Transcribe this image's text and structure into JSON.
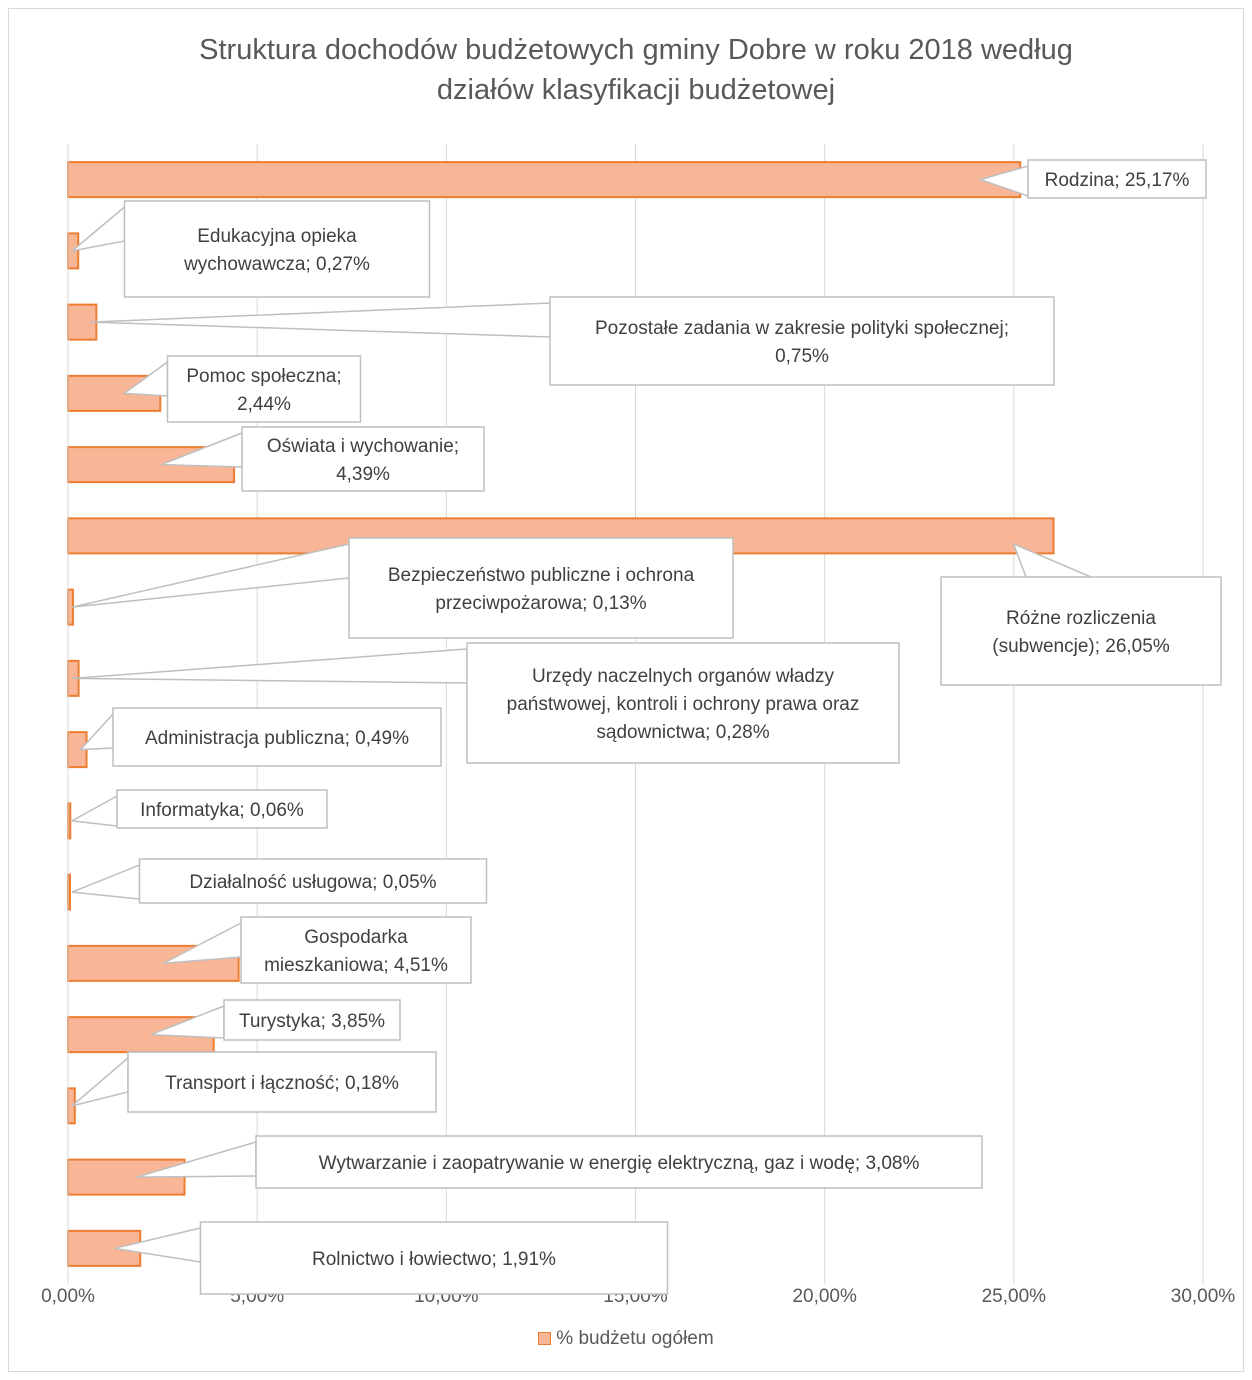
{
  "chart_data": {
    "type": "bar",
    "orientation": "horizontal",
    "title": "Struktura dochodów budżetowych gminy Dobre w roku 2018 według\ndziałów klasyfikacji budżetowej",
    "xlim": [
      0,
      30
    ],
    "x_ticks": [
      "0,00%",
      "5,00%",
      "10,00%",
      "15,00%",
      "20,00%",
      "25,00%",
      "30,00%"
    ],
    "grid": true,
    "legend_position": "bottom",
    "series": [
      {
        "name": "% budżetu ogółem",
        "color": "#f8b696",
        "border_color": "#ed7d31",
        "points": [
          {
            "category": "Rodzina",
            "value": 25.17,
            "label": "Rodzina; 25,17%"
          },
          {
            "category": "Edukacyjna opieka wychowawcza",
            "value": 0.27,
            "label": "Edukacyjna opieka\nwychowawcza; 0,27%"
          },
          {
            "category": "Pozostałe zadania w zakresie polityki społecznej",
            "value": 0.75,
            "label": "Pozostałe zadania w zakresie polityki społecznej;\n0,75%"
          },
          {
            "category": "Pomoc społeczna",
            "value": 2.44,
            "label": "Pomoc społeczna;\n2,44%"
          },
          {
            "category": "Oświata i wychowanie",
            "value": 4.39,
            "label": "Oświata i wychowanie;\n4,39%"
          },
          {
            "category": "Różne rozliczenia (subwencje)",
            "value": 26.05,
            "label": "Różne rozliczenia\n(subwencje); 26,05%"
          },
          {
            "category": "Bezpieczeństwo publiczne i ochrona przeciwpożarowa",
            "value": 0.13,
            "label": "Bezpieczeństwo publiczne i ochrona\nprzeciwpożarowa; 0,13%"
          },
          {
            "category": "Urzędy naczelnych organów władzy państwowej, kontroli i ochrony prawa oraz sądownictwa",
            "value": 0.28,
            "label": "Urzędy naczelnych organów władzy\npaństwowej, kontroli i ochrony prawa oraz\nsądownictwa; 0,28%"
          },
          {
            "category": "Administracja publiczna",
            "value": 0.49,
            "label": "Administracja publiczna; 0,49%"
          },
          {
            "category": "Informatyka",
            "value": 0.06,
            "label": "Informatyka; 0,06%"
          },
          {
            "category": "Działalność usługowa",
            "value": 0.05,
            "label": "Działalność usługowa; 0,05%"
          },
          {
            "category": "Gospodarka mieszkaniowa",
            "value": 4.51,
            "label": "Gospodarka\nmieszkaniowa; 4,51%"
          },
          {
            "category": "Turystyka",
            "value": 3.85,
            "label": "Turystyka; 3,85%"
          },
          {
            "category": "Transport i łączność",
            "value": 0.18,
            "label": "Transport i łączność; 0,18%"
          },
          {
            "category": "Wytwarzanie i zaopatrywanie w energię elektryczną, gaz i wodę",
            "value": 3.08,
            "label": "Wytwarzanie i zaopatrywanie w energię elektryczną, gaz i wodę; 3,08%"
          },
          {
            "category": "Rolnictwo i łowiectwo",
            "value": 1.91,
            "label": "Rolnictwo i łowiectwo; 1,91%"
          }
        ]
      }
    ]
  }
}
